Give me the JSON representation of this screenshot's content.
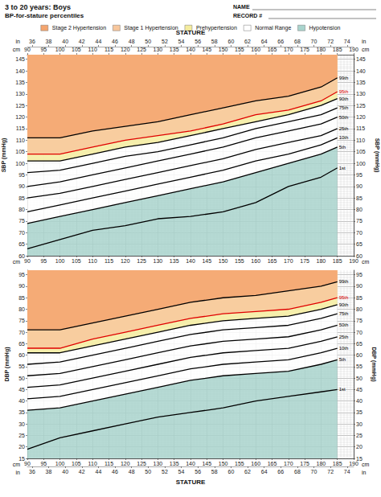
{
  "chart_data": [
    {
      "type": "line",
      "title": "3 to 20 years: Boys",
      "subtitle": "BP-for-stature percentiles",
      "form_fields": [
        "NAME",
        "RECORD #"
      ],
      "xlabel": "STATURE",
      "x_unit": "cm",
      "x2_unit": "in",
      "x": [
        90,
        100,
        110,
        120,
        130,
        140,
        150,
        160,
        170,
        180,
        185
      ],
      "xlim": [
        90,
        190
      ],
      "xticks": [
        90,
        95,
        100,
        105,
        110,
        115,
        120,
        125,
        130,
        135,
        140,
        145,
        150,
        155,
        160,
        165,
        170,
        175,
        180,
        185,
        190
      ],
      "x2lim": [
        35.43,
        74.8
      ],
      "x2ticks": [
        36,
        38,
        40,
        42,
        44,
        46,
        48,
        50,
        52,
        54,
        56,
        58,
        60,
        62,
        64,
        66,
        68,
        70,
        72,
        74
      ],
      "ylabel": "SBP (mmHg)",
      "ylim": [
        60,
        147
      ],
      "yticks": [
        60,
        65,
        70,
        75,
        80,
        85,
        90,
        95,
        100,
        105,
        110,
        115,
        120,
        125,
        130,
        135,
        140,
        145
      ],
      "y2label": "SBP (mmHg)",
      "y2lim": [
        60,
        147
      ],
      "y2ticks": [
        60,
        65,
        70,
        75,
        80,
        85,
        90,
        95,
        100,
        105,
        110,
        115,
        120,
        125,
        130,
        135,
        140,
        145
      ],
      "grid": true,
      "legend": "top",
      "zones": [
        {
          "name": "Stage 2 Hypertension",
          "color": "#f4a56e",
          "above": "99th"
        },
        {
          "name": "Stage 1 Hypertension",
          "color": "#f8c79c",
          "above": "95th"
        },
        {
          "name": "Prehypertension",
          "color": "#f4ec9e",
          "above": "90th"
        },
        {
          "name": "Normal Range",
          "color": "#ffffff",
          "above": "5th"
        },
        {
          "name": "Hypotension",
          "color": "#a9d4cd",
          "below": "5th"
        }
      ],
      "series": [
        {
          "name": "99th",
          "color": "#000000",
          "values": [
            111,
            111,
            114,
            116,
            118,
            121,
            124,
            127,
            129,
            133,
            137
          ]
        },
        {
          "name": "95th",
          "color": "#e00000",
          "values": [
            104,
            104,
            107,
            110,
            112,
            114,
            117,
            121,
            123,
            127,
            131
          ]
        },
        {
          "name": "90th",
          "color": "#000000",
          "values": [
            101,
            101,
            104,
            107,
            109,
            112,
            115,
            118,
            121,
            125,
            128
          ]
        },
        {
          "name": "75th",
          "color": "#000000",
          "values": [
            96,
            97,
            100,
            103,
            105,
            108,
            111,
            115,
            118,
            121,
            124
          ]
        },
        {
          "name": "50th",
          "color": "#000000",
          "values": [
            90,
            92,
            95,
            98,
            101,
            104,
            107,
            111,
            114,
            117,
            120
          ]
        },
        {
          "name": "25th",
          "color": "#000000",
          "values": [
            85,
            87,
            90,
            93,
            96,
            99,
            102,
            106,
            109,
            112,
            115
          ]
        },
        {
          "name": "10th",
          "color": "#000000",
          "values": [
            79,
            82,
            85,
            88,
            91,
            94,
            97,
            101,
            104,
            108,
            111
          ]
        },
        {
          "name": "5th",
          "color": "#000000",
          "values": [
            74,
            77,
            80,
            83,
            86,
            89,
            92,
            96,
            100,
            104,
            107
          ]
        },
        {
          "name": "1st",
          "color": "#000000",
          "values": [
            63,
            67,
            71,
            73,
            76,
            77,
            79,
            83,
            90,
            94,
            98
          ]
        }
      ]
    },
    {
      "type": "line",
      "xlabel": "STATURE",
      "x_unit": "cm",
      "x2_unit": "in",
      "x": [
        90,
        100,
        110,
        120,
        130,
        140,
        150,
        160,
        170,
        180,
        185
      ],
      "xlim": [
        90,
        190
      ],
      "xticks": [
        90,
        95,
        100,
        105,
        110,
        115,
        120,
        125,
        130,
        135,
        140,
        145,
        150,
        155,
        160,
        165,
        170,
        175,
        180,
        185,
        190
      ],
      "x2lim": [
        35.43,
        74.8
      ],
      "x2ticks": [
        36,
        38,
        40,
        42,
        44,
        46,
        48,
        50,
        52,
        54,
        56,
        58,
        60,
        62,
        64,
        66,
        68,
        70,
        72,
        74
      ],
      "ylabel": "DBP (mmHg)",
      "ylim": [
        15,
        97
      ],
      "yticks": [
        15,
        20,
        25,
        30,
        35,
        40,
        45,
        50,
        55,
        60,
        65,
        70,
        75,
        80,
        85,
        90,
        95
      ],
      "y2label": "DBP (mmHg)",
      "y2lim": [
        15,
        97
      ],
      "y2ticks": [
        15,
        20,
        25,
        30,
        35,
        40,
        45,
        50,
        55,
        60,
        65,
        70,
        75,
        80,
        85,
        90,
        95
      ],
      "grid": true,
      "zones": [
        {
          "name": "Stage 2 Hypertension",
          "color": "#f4a56e",
          "above": "99th"
        },
        {
          "name": "Stage 1 Hypertension",
          "color": "#f8c79c",
          "above": "95th"
        },
        {
          "name": "Prehypertension",
          "color": "#f4ec9e",
          "above": "90th"
        },
        {
          "name": "Normal Range",
          "color": "#ffffff",
          "above": "5th"
        },
        {
          "name": "Hypotension",
          "color": "#a9d4cd",
          "below": "5th"
        }
      ],
      "series": [
        {
          "name": "99th",
          "color": "#000000",
          "values": [
            71,
            71,
            74,
            77,
            80,
            83,
            85,
            86,
            88,
            90,
            92
          ]
        },
        {
          "name": "95th",
          "color": "#e00000",
          "values": [
            63,
            63,
            67,
            70,
            73,
            76,
            78,
            79,
            80,
            83,
            85
          ]
        },
        {
          "name": "90th",
          "color": "#000000",
          "values": [
            61,
            61,
            64,
            67,
            70,
            73,
            75,
            76,
            77,
            80,
            82
          ]
        },
        {
          "name": "75th",
          "color": "#000000",
          "values": [
            56,
            57,
            60,
            63,
            66,
            69,
            71,
            72,
            73,
            76,
            78
          ]
        },
        {
          "name": "50th",
          "color": "#000000",
          "values": [
            51,
            52,
            55,
            58,
            61,
            64,
            66,
            67,
            68,
            71,
            73
          ]
        },
        {
          "name": "25th",
          "color": "#000000",
          "values": [
            46,
            47,
            50,
            53,
            56,
            59,
            61,
            62,
            63,
            66,
            68
          ]
        },
        {
          "name": "10th",
          "color": "#000000",
          "values": [
            41,
            42,
            45,
            48,
            51,
            54,
            56,
            57,
            58,
            61,
            63
          ]
        },
        {
          "name": "5th",
          "color": "#000000",
          "values": [
            36,
            37,
            40,
            43,
            46,
            49,
            51,
            52,
            53,
            56,
            58
          ]
        },
        {
          "name": "1st",
          "color": "#000000",
          "values": [
            19,
            24,
            27,
            30,
            33,
            35,
            37,
            40,
            42,
            44,
            45
          ]
        }
      ]
    }
  ]
}
